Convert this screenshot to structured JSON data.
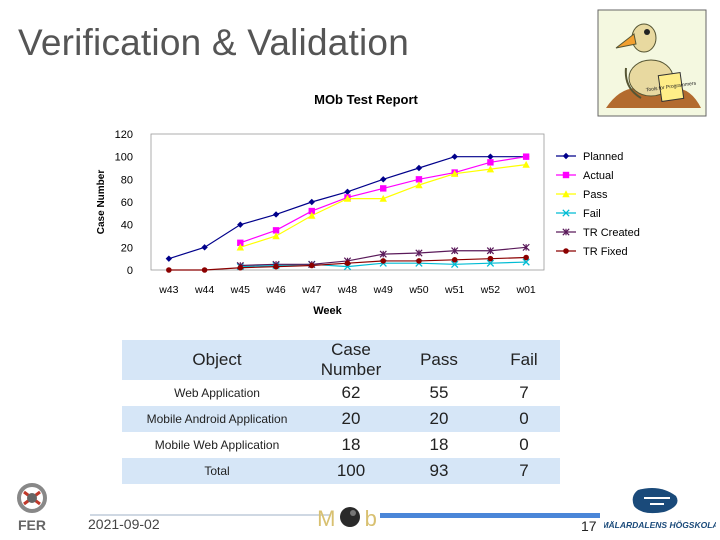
{
  "slide": {
    "title": "Verification & Validation",
    "date": "2021-09-02",
    "page_number": "17",
    "footer_logo_text": "MOb",
    "left_logo_text": "FER",
    "right_logo_text": "MÄLARDALENS HÖGSKOLA",
    "book_text": "Tools for Programmers"
  },
  "table": {
    "headers": [
      "Object",
      "Case Number",
      "Pass",
      "Fail"
    ],
    "rows": [
      [
        "Web Application",
        "62",
        "55",
        "7"
      ],
      [
        "Mobile Android Application",
        "20",
        "20",
        "0"
      ],
      [
        "Mobile Web Application",
        "18",
        "18",
        "0"
      ],
      [
        "Total",
        "100",
        "93",
        "7"
      ]
    ]
  },
  "colors": {
    "planned": "#00008b",
    "actual": "#ff00ff",
    "pass": "#ffff00",
    "fail": "#00bcd4",
    "tr_created": "#5a1a5a",
    "tr_fixed": "#8b0000",
    "header_row": "#d6e6f7"
  },
  "chart_data": {
    "type": "line",
    "title": "MOb Test Report",
    "xlabel": "Week",
    "ylabel": "Case Number",
    "ylim": [
      0,
      120
    ],
    "yticks": [
      0,
      20,
      40,
      60,
      80,
      100,
      120
    ],
    "categories": [
      "w43",
      "w44",
      "w45",
      "w46",
      "w47",
      "w48",
      "w49",
      "w50",
      "w51",
      "w52",
      "w01"
    ],
    "legend_position": "right",
    "series": [
      {
        "name": "Planned",
        "marker": "diamond",
        "values": [
          10,
          20,
          40,
          49,
          60,
          69,
          80,
          90,
          100,
          100,
          100
        ]
      },
      {
        "name": "Actual",
        "marker": "square",
        "values": [
          null,
          null,
          24,
          35,
          52,
          64,
          72,
          80,
          86,
          95,
          100
        ]
      },
      {
        "name": "Pass",
        "marker": "triangle",
        "values": [
          null,
          null,
          20,
          30,
          48,
          63,
          63,
          75,
          85,
          89,
          93
        ]
      },
      {
        "name": "Fail",
        "marker": "x",
        "values": [
          null,
          null,
          3,
          4,
          5,
          3,
          6,
          6,
          5,
          6,
          7
        ]
      },
      {
        "name": "TR Created",
        "marker": "star",
        "values": [
          null,
          null,
          4,
          5,
          5,
          8,
          14,
          15,
          17,
          17,
          20
        ]
      },
      {
        "name": "TR Fixed",
        "marker": "circle",
        "values": [
          0,
          0,
          2,
          3,
          4,
          6,
          8,
          8,
          9,
          10,
          11
        ]
      }
    ]
  }
}
